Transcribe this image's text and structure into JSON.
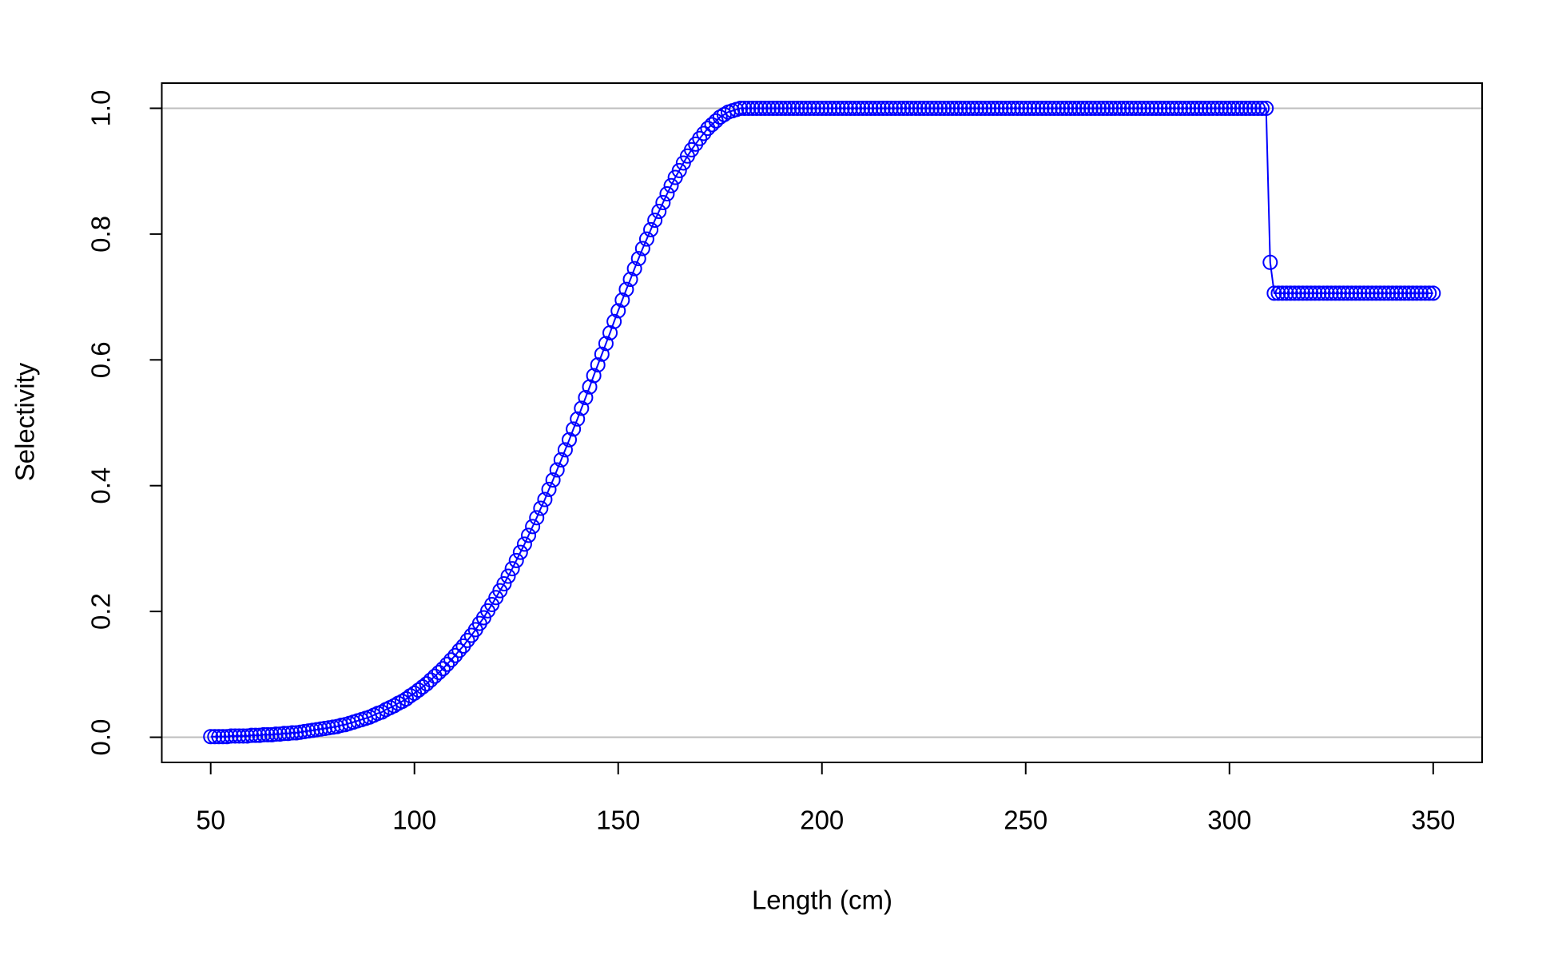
{
  "chart_data": {
    "type": "line",
    "xlabel": "Length (cm)",
    "ylabel": "Selectivity",
    "color": "#0000ff",
    "markers": true,
    "reference_lines": [
      0,
      1
    ],
    "reference_color": "#bebebe",
    "xlim": [
      38,
      362
    ],
    "ylim": [
      -0.04,
      1.04
    ],
    "xticks": [
      50,
      100,
      150,
      200,
      250,
      300,
      350
    ],
    "yticks": [
      {
        "value": 0,
        "label": "0.0"
      },
      0.2,
      0.4,
      0.6,
      0.8,
      {
        "value": 1,
        "label": "1.0"
      }
    ],
    "x": [
      50,
      51,
      52,
      53,
      54,
      55,
      56,
      57,
      58,
      59,
      60,
      61,
      62,
      63,
      64,
      65,
      66,
      67,
      68,
      69,
      70,
      71,
      72,
      73,
      74,
      75,
      76,
      77,
      78,
      79,
      80,
      81,
      82,
      83,
      84,
      85,
      86,
      87,
      88,
      89,
      90,
      91,
      92,
      93,
      94,
      95,
      96,
      97,
      98,
      99,
      100,
      101,
      102,
      103,
      104,
      105,
      106,
      107,
      108,
      109,
      110,
      111,
      112,
      113,
      114,
      115,
      116,
      117,
      118,
      119,
      120,
      121,
      122,
      123,
      124,
      125,
      126,
      127,
      128,
      129,
      130,
      131,
      132,
      133,
      134,
      135,
      136,
      137,
      138,
      139,
      140,
      141,
      142,
      143,
      144,
      145,
      146,
      147,
      148,
      149,
      150,
      151,
      152,
      153,
      154,
      155,
      156,
      157,
      158,
      159,
      160,
      161,
      162,
      163,
      164,
      165,
      166,
      167,
      168,
      169,
      170,
      171,
      172,
      173,
      174,
      175,
      176,
      177,
      178,
      179,
      180,
      181,
      182,
      183,
      184,
      185,
      186,
      187,
      188,
      189,
      190,
      191,
      192,
      193,
      194,
      195,
      196,
      197,
      198,
      199,
      200,
      201,
      202,
      203,
      204,
      205,
      206,
      207,
      208,
      209,
      210,
      211,
      212,
      213,
      214,
      215,
      216,
      217,
      218,
      219,
      220,
      221,
      222,
      223,
      224,
      225,
      226,
      227,
      228,
      229,
      230,
      231,
      232,
      233,
      234,
      235,
      236,
      237,
      238,
      239,
      240,
      241,
      242,
      243,
      244,
      245,
      246,
      247,
      248,
      249,
      250,
      251,
      252,
      253,
      254,
      255,
      256,
      257,
      258,
      259,
      260,
      261,
      262,
      263,
      264,
      265,
      266,
      267,
      268,
      269,
      270,
      271,
      272,
      273,
      274,
      275,
      276,
      277,
      278,
      279,
      280,
      281,
      282,
      283,
      284,
      285,
      286,
      287,
      288,
      289,
      290,
      291,
      292,
      293,
      294,
      295,
      296,
      297,
      298,
      299,
      300,
      301,
      302,
      303,
      304,
      305,
      306,
      307,
      308,
      309,
      310,
      311,
      312,
      313,
      314,
      315,
      316,
      317,
      318,
      319,
      320,
      321,
      322,
      323,
      324,
      325,
      326,
      327,
      328,
      329,
      330,
      331,
      332,
      333,
      334,
      335,
      336,
      337,
      338,
      339,
      340,
      341,
      342,
      343,
      344,
      345,
      346,
      347,
      348,
      349,
      350
    ],
    "values": [
      0.001,
      0.001,
      0.001,
      0.001,
      0.001,
      0.002,
      0.002,
      0.002,
      0.002,
      0.002,
      0.003,
      0.003,
      0.003,
      0.004,
      0.004,
      0.004,
      0.005,
      0.005,
      0.006,
      0.006,
      0.007,
      0.007,
      0.008,
      0.009,
      0.01,
      0.011,
      0.012,
      0.013,
      0.014,
      0.015,
      0.016,
      0.017,
      0.019,
      0.02,
      0.022,
      0.024,
      0.026,
      0.028,
      0.03,
      0.032,
      0.035,
      0.038,
      0.04,
      0.044,
      0.047,
      0.05,
      0.054,
      0.057,
      0.061,
      0.066,
      0.07,
      0.075,
      0.08,
      0.085,
      0.091,
      0.097,
      0.103,
      0.109,
      0.116,
      0.123,
      0.13,
      0.138,
      0.145,
      0.154,
      0.162,
      0.171,
      0.181,
      0.19,
      0.201,
      0.211,
      0.222,
      0.233,
      0.244,
      0.256,
      0.268,
      0.281,
      0.294,
      0.307,
      0.321,
      0.335,
      0.349,
      0.364,
      0.378,
      0.394,
      0.409,
      0.425,
      0.441,
      0.457,
      0.473,
      0.49,
      0.506,
      0.523,
      0.54,
      0.557,
      0.575,
      0.592,
      0.609,
      0.626,
      0.643,
      0.661,
      0.678,
      0.695,
      0.712,
      0.728,
      0.745,
      0.761,
      0.777,
      0.792,
      0.807,
      0.822,
      0.836,
      0.85,
      0.864,
      0.877,
      0.89,
      0.901,
      0.913,
      0.924,
      0.934,
      0.943,
      0.952,
      0.96,
      0.968,
      0.974,
      0.98,
      0.986,
      0.99,
      0.994,
      0.996,
      0.998,
      1,
      1,
      1,
      1,
      1,
      1,
      1,
      1,
      1,
      1,
      1,
      1,
      1,
      1,
      1,
      1,
      1,
      1,
      1,
      1,
      1,
      1,
      1,
      1,
      1,
      1,
      1,
      1,
      1,
      1,
      1,
      1,
      1,
      1,
      1,
      1,
      1,
      1,
      1,
      1,
      1,
      1,
      1,
      1,
      1,
      1,
      1,
      1,
      1,
      1,
      1,
      1,
      1,
      1,
      1,
      1,
      1,
      1,
      1,
      1,
      1,
      1,
      1,
      1,
      1,
      1,
      1,
      1,
      1,
      1,
      1,
      1,
      1,
      1,
      1,
      1,
      1,
      1,
      1,
      1,
      1,
      1,
      1,
      1,
      1,
      1,
      1,
      1,
      1,
      1,
      1,
      1,
      1,
      1,
      1,
      1,
      1,
      1,
      1,
      1,
      1,
      1,
      1,
      1,
      1,
      1,
      1,
      1,
      1,
      1,
      1,
      1,
      1,
      1,
      1,
      1,
      1,
      1,
      1,
      1,
      1,
      1,
      1,
      1,
      1,
      1,
      1,
      1,
      1,
      1,
      0.755,
      0.706,
      0.706,
      0.706,
      0.706,
      0.706,
      0.706,
      0.706,
      0.706,
      0.706,
      0.706,
      0.706,
      0.706,
      0.706,
      0.706,
      0.706,
      0.706,
      0.706,
      0.706,
      0.706,
      0.706,
      0.706,
      0.706,
      0.706,
      0.706,
      0.706,
      0.706,
      0.706,
      0.706,
      0.706,
      0.706,
      0.706,
      0.706,
      0.706,
      0.706,
      0.706,
      0.706,
      0.706,
      0.706,
      0.706,
      0.706
    ]
  }
}
